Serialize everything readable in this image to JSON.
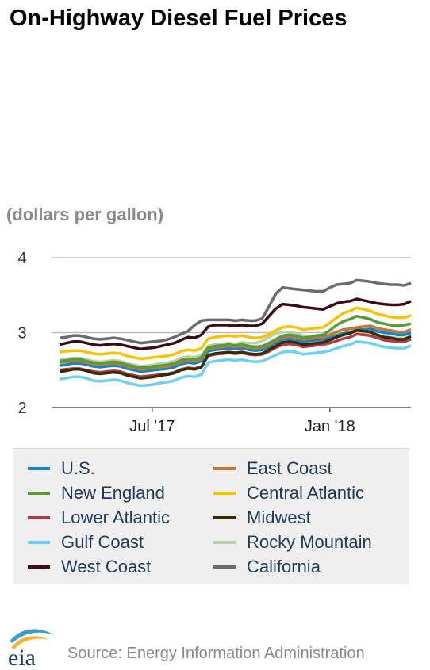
{
  "title": "On-Highway Diesel Fuel Prices",
  "subtitle": "(dollars per gallon)",
  "source": "Source: Energy Information Administration",
  "logo_text": "eia",
  "chart_data": {
    "type": "line",
    "x": [
      "2017-03-27",
      "2017-04-03",
      "2017-04-10",
      "2017-04-17",
      "2017-04-24",
      "2017-05-01",
      "2017-05-08",
      "2017-05-15",
      "2017-05-22",
      "2017-05-29",
      "2017-06-05",
      "2017-06-12",
      "2017-06-19",
      "2017-06-26",
      "2017-07-03",
      "2017-07-10",
      "2017-07-17",
      "2017-07-24",
      "2017-07-31",
      "2017-08-07",
      "2017-08-14",
      "2017-08-21",
      "2017-08-28",
      "2017-09-04",
      "2017-09-11",
      "2017-09-18",
      "2017-09-25",
      "2017-10-02",
      "2017-10-09",
      "2017-10-16",
      "2017-10-23",
      "2017-10-30",
      "2017-11-06",
      "2017-11-13",
      "2017-11-20",
      "2017-11-27",
      "2017-12-04",
      "2017-12-11",
      "2017-12-18",
      "2017-12-25",
      "2018-01-01",
      "2018-01-08",
      "2018-01-15",
      "2018-01-22",
      "2018-01-29",
      "2018-02-05",
      "2018-02-12",
      "2018-02-19",
      "2018-02-26",
      "2018-03-05",
      "2018-03-12",
      "2018-03-19",
      "2018-03-26"
    ],
    "x_ticks": [
      {
        "label": "Jul '17",
        "x": "2017-07-01"
      },
      {
        "label": "Jan '18",
        "x": "2018-01-01"
      }
    ],
    "y_ticks": [
      2,
      3,
      4
    ],
    "ylim": [
      2,
      4
    ],
    "grid": true,
    "legend_position": "bottom",
    "series": [
      {
        "name": "U.S.",
        "color": "#0e86c7",
        "values": [
          2.56,
          2.57,
          2.59,
          2.59,
          2.57,
          2.55,
          2.54,
          2.55,
          2.56,
          2.55,
          2.52,
          2.5,
          2.48,
          2.49,
          2.5,
          2.51,
          2.52,
          2.54,
          2.58,
          2.6,
          2.59,
          2.62,
          2.75,
          2.77,
          2.78,
          2.79,
          2.78,
          2.79,
          2.77,
          2.76,
          2.77,
          2.81,
          2.86,
          2.91,
          2.92,
          2.91,
          2.88,
          2.89,
          2.9,
          2.91,
          2.93,
          2.96,
          2.99,
          3.0,
          3.04,
          3.04,
          3.05,
          3.02,
          3.0,
          2.99,
          2.97,
          2.97,
          3.0
        ]
      },
      {
        "name": "East Coast",
        "color": "#c87533",
        "values": [
          2.6,
          2.61,
          2.62,
          2.62,
          2.6,
          2.58,
          2.57,
          2.58,
          2.59,
          2.58,
          2.55,
          2.53,
          2.51,
          2.52,
          2.53,
          2.54,
          2.55,
          2.57,
          2.61,
          2.63,
          2.62,
          2.65,
          2.78,
          2.8,
          2.81,
          2.82,
          2.81,
          2.82,
          2.8,
          2.79,
          2.8,
          2.84,
          2.89,
          2.94,
          2.95,
          2.94,
          2.91,
          2.92,
          2.93,
          2.94,
          2.97,
          3.01,
          3.04,
          3.05,
          3.07,
          3.08,
          3.09,
          3.06,
          3.04,
          3.03,
          3.01,
          3.01,
          3.04
        ]
      },
      {
        "name": "New England",
        "color": "#5a9a3a",
        "values": [
          2.62,
          2.63,
          2.64,
          2.64,
          2.62,
          2.6,
          2.59,
          2.6,
          2.61,
          2.6,
          2.57,
          2.55,
          2.53,
          2.54,
          2.55,
          2.56,
          2.57,
          2.59,
          2.63,
          2.65,
          2.64,
          2.67,
          2.8,
          2.82,
          2.83,
          2.84,
          2.83,
          2.84,
          2.82,
          2.81,
          2.82,
          2.86,
          2.91,
          2.96,
          2.97,
          2.96,
          2.93,
          2.94,
          2.96,
          2.97,
          3.03,
          3.1,
          3.15,
          3.18,
          3.22,
          3.2,
          3.18,
          3.14,
          3.12,
          3.1,
          3.09,
          3.1,
          3.12
        ]
      },
      {
        "name": "Central Atlantic",
        "color": "#f5c400",
        "values": [
          2.74,
          2.75,
          2.76,
          2.76,
          2.74,
          2.72,
          2.71,
          2.72,
          2.73,
          2.72,
          2.69,
          2.67,
          2.65,
          2.66,
          2.67,
          2.68,
          2.69,
          2.71,
          2.75,
          2.77,
          2.76,
          2.79,
          2.92,
          2.94,
          2.95,
          2.96,
          2.95,
          2.96,
          2.94,
          2.93,
          2.94,
          2.98,
          3.03,
          3.07,
          3.08,
          3.07,
          3.04,
          3.05,
          3.06,
          3.07,
          3.13,
          3.2,
          3.26,
          3.29,
          3.33,
          3.31,
          3.29,
          3.25,
          3.23,
          3.21,
          3.2,
          3.2,
          3.23
        ]
      },
      {
        "name": "Lower Atlantic",
        "color": "#b03a48",
        "values": [
          2.5,
          2.51,
          2.52,
          2.52,
          2.5,
          2.48,
          2.47,
          2.48,
          2.49,
          2.48,
          2.45,
          2.43,
          2.41,
          2.42,
          2.43,
          2.44,
          2.45,
          2.47,
          2.51,
          2.53,
          2.52,
          2.55,
          2.69,
          2.71,
          2.72,
          2.73,
          2.72,
          2.73,
          2.71,
          2.7,
          2.71,
          2.75,
          2.8,
          2.84,
          2.85,
          2.84,
          2.81,
          2.82,
          2.83,
          2.84,
          2.86,
          2.89,
          2.92,
          2.94,
          2.98,
          2.97,
          2.96,
          2.93,
          2.9,
          2.89,
          2.88,
          2.88,
          2.91
        ]
      },
      {
        "name": "Midwest",
        "color": "#3a2a00",
        "values": [
          2.48,
          2.49,
          2.51,
          2.51,
          2.49,
          2.46,
          2.45,
          2.46,
          2.47,
          2.46,
          2.43,
          2.41,
          2.39,
          2.4,
          2.41,
          2.43,
          2.44,
          2.46,
          2.5,
          2.52,
          2.51,
          2.54,
          2.7,
          2.72,
          2.73,
          2.74,
          2.73,
          2.74,
          2.72,
          2.71,
          2.72,
          2.77,
          2.82,
          2.87,
          2.88,
          2.87,
          2.84,
          2.85,
          2.86,
          2.87,
          2.9,
          2.94,
          2.97,
          2.99,
          3.03,
          3.02,
          3.01,
          2.97,
          2.94,
          2.93,
          2.91,
          2.91,
          2.95
        ]
      },
      {
        "name": "Gulf Coast",
        "color": "#6fd0f5",
        "values": [
          2.38,
          2.39,
          2.41,
          2.41,
          2.39,
          2.36,
          2.35,
          2.36,
          2.37,
          2.36,
          2.33,
          2.31,
          2.29,
          2.3,
          2.31,
          2.33,
          2.34,
          2.36,
          2.4,
          2.42,
          2.41,
          2.44,
          2.6,
          2.62,
          2.63,
          2.64,
          2.63,
          2.64,
          2.62,
          2.61,
          2.62,
          2.66,
          2.7,
          2.74,
          2.75,
          2.74,
          2.71,
          2.72,
          2.73,
          2.74,
          2.76,
          2.79,
          2.82,
          2.84,
          2.88,
          2.87,
          2.86,
          2.83,
          2.81,
          2.8,
          2.79,
          2.79,
          2.83
        ]
      },
      {
        "name": "Rocky Mountain",
        "color": "#b7d3a6",
        "values": [
          2.64,
          2.65,
          2.66,
          2.66,
          2.64,
          2.62,
          2.61,
          2.62,
          2.63,
          2.62,
          2.59,
          2.57,
          2.55,
          2.56,
          2.57,
          2.59,
          2.6,
          2.62,
          2.66,
          2.68,
          2.67,
          2.7,
          2.82,
          2.84,
          2.85,
          2.86,
          2.85,
          2.87,
          2.86,
          2.86,
          2.89,
          2.94,
          2.99,
          3.01,
          3.01,
          2.99,
          2.96,
          2.95,
          2.94,
          2.94,
          2.95,
          2.97,
          2.99,
          3.0,
          3.02,
          3.01,
          3.0,
          2.97,
          2.95,
          2.94,
          2.93,
          2.93,
          2.95
        ]
      },
      {
        "name": "West Coast",
        "color": "#3d0b12",
        "values": [
          2.84,
          2.86,
          2.88,
          2.88,
          2.86,
          2.84,
          2.83,
          2.84,
          2.85,
          2.84,
          2.82,
          2.8,
          2.78,
          2.79,
          2.8,
          2.82,
          2.84,
          2.86,
          2.9,
          2.94,
          2.93,
          2.97,
          3.08,
          3.1,
          3.1,
          3.1,
          3.09,
          3.1,
          3.09,
          3.09,
          3.12,
          3.22,
          3.32,
          3.38,
          3.37,
          3.36,
          3.34,
          3.33,
          3.32,
          3.31,
          3.35,
          3.39,
          3.41,
          3.42,
          3.45,
          3.43,
          3.41,
          3.39,
          3.38,
          3.37,
          3.37,
          3.38,
          3.42
        ]
      },
      {
        "name": "California",
        "color": "#6b6b6b",
        "values": [
          2.93,
          2.94,
          2.96,
          2.96,
          2.94,
          2.92,
          2.91,
          2.92,
          2.93,
          2.92,
          2.9,
          2.88,
          2.86,
          2.87,
          2.88,
          2.89,
          2.91,
          2.94,
          2.98,
          3.02,
          3.1,
          3.16,
          3.17,
          3.17,
          3.17,
          3.17,
          3.16,
          3.17,
          3.16,
          3.16,
          3.19,
          3.35,
          3.52,
          3.6,
          3.59,
          3.58,
          3.57,
          3.56,
          3.55,
          3.55,
          3.6,
          3.64,
          3.65,
          3.66,
          3.7,
          3.69,
          3.68,
          3.66,
          3.65,
          3.64,
          3.64,
          3.63,
          3.66
        ]
      }
    ]
  }
}
